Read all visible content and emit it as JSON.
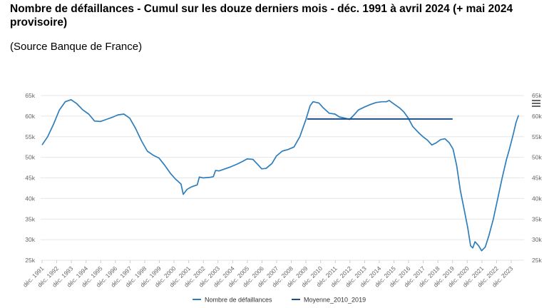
{
  "header": {
    "title": "Nombre de défaillances - Cumul sur les douze derniers mois - déc. 1991 à avril 2024 (+ mai 2024 provisoire)",
    "source": "(Source Banque de France)"
  },
  "icons": {
    "menu": "hamburger-menu-icon"
  },
  "chart_data": {
    "type": "line",
    "title": "",
    "xlabel": "",
    "ylabel": "",
    "ylim": [
      25000,
      65000
    ],
    "y_ticks": [
      65000,
      60000,
      55000,
      50000,
      45000,
      40000,
      35000,
      30000,
      25000
    ],
    "y_tick_labels": [
      "65k",
      "60k",
      "55k",
      "50k",
      "45k",
      "40k",
      "35k",
      "30k",
      "25k"
    ],
    "dual_y_axis": true,
    "grid": true,
    "legend_position": "bottom-center",
    "x_categories": [
      "déc. 1991",
      "déc. 1992",
      "déc. 1993",
      "déc. 1994",
      "déc. 1995",
      "déc. 1996",
      "déc. 1997",
      "déc. 1998",
      "déc. 1999",
      "déc. 2000",
      "déc. 2001",
      "déc. 2002",
      "déc. 2003",
      "déc. 2004",
      "déc. 2005",
      "déc. 2006",
      "déc. 2007",
      "déc. 2008",
      "déc. 2009",
      "déc. 2010",
      "déc. 2011",
      "déc. 2012",
      "déc. 2013",
      "déc. 2014",
      "déc. 2015",
      "déc. 2016",
      "déc. 2017",
      "déc. 2018",
      "déc. 2019",
      "déc. 2020",
      "déc. 2021",
      "déc. 2022",
      "déc. 2023"
    ],
    "series": [
      {
        "name": "Nombre de défaillances",
        "color": "#2f7ebc",
        "points": [
          [
            1991.92,
            53000
          ],
          [
            1992.3,
            55000
          ],
          [
            1992.7,
            58000
          ],
          [
            1993.1,
            61500
          ],
          [
            1993.5,
            63500
          ],
          [
            1993.9,
            64000
          ],
          [
            1994.3,
            63000
          ],
          [
            1994.7,
            61500
          ],
          [
            1995.1,
            60500
          ],
          [
            1995.5,
            58800
          ],
          [
            1995.9,
            58700
          ],
          [
            1996.3,
            59200
          ],
          [
            1996.7,
            59700
          ],
          [
            1997.1,
            60300
          ],
          [
            1997.5,
            60500
          ],
          [
            1997.9,
            59500
          ],
          [
            1998.3,
            57000
          ],
          [
            1998.7,
            54000
          ],
          [
            1999.1,
            51500
          ],
          [
            1999.5,
            50500
          ],
          [
            1999.9,
            49800
          ],
          [
            2000.3,
            48000
          ],
          [
            2000.7,
            46000
          ],
          [
            2001.0,
            44800
          ],
          [
            2001.4,
            43500
          ],
          [
            2001.55,
            41000
          ],
          [
            2001.8,
            42200
          ],
          [
            2002.1,
            42800
          ],
          [
            2002.5,
            43300
          ],
          [
            2002.65,
            45200
          ],
          [
            2002.9,
            45000
          ],
          [
            2003.3,
            45100
          ],
          [
            2003.6,
            45300
          ],
          [
            2003.75,
            46800
          ],
          [
            2004.0,
            46700
          ],
          [
            2004.4,
            47200
          ],
          [
            2004.8,
            47700
          ],
          [
            2005.2,
            48300
          ],
          [
            2005.6,
            49000
          ],
          [
            2005.9,
            49600
          ],
          [
            2006.3,
            49500
          ],
          [
            2006.7,
            48000
          ],
          [
            2006.9,
            47200
          ],
          [
            2007.2,
            47300
          ],
          [
            2007.6,
            48500
          ],
          [
            2007.9,
            50300
          ],
          [
            2008.3,
            51500
          ],
          [
            2008.7,
            51900
          ],
          [
            2009.1,
            52500
          ],
          [
            2009.5,
            55000
          ],
          [
            2009.9,
            59000
          ],
          [
            2010.2,
            62500
          ],
          [
            2010.4,
            63500
          ],
          [
            2010.8,
            63200
          ],
          [
            2011.1,
            62000
          ],
          [
            2011.5,
            60700
          ],
          [
            2011.9,
            60500
          ],
          [
            2012.2,
            59800
          ],
          [
            2012.6,
            59500
          ],
          [
            2012.9,
            59200
          ],
          [
            2013.2,
            60300
          ],
          [
            2013.5,
            61500
          ],
          [
            2013.9,
            62200
          ],
          [
            2014.3,
            62800
          ],
          [
            2014.7,
            63300
          ],
          [
            2015.1,
            63500
          ],
          [
            2015.4,
            63500
          ],
          [
            2015.6,
            63800
          ],
          [
            2015.9,
            63000
          ],
          [
            2016.3,
            62000
          ],
          [
            2016.6,
            61000
          ],
          [
            2016.9,
            59500
          ],
          [
            2017.2,
            57500
          ],
          [
            2017.6,
            56000
          ],
          [
            2017.9,
            55000
          ],
          [
            2018.2,
            54200
          ],
          [
            2018.5,
            53000
          ],
          [
            2018.8,
            53500
          ],
          [
            2019.1,
            54300
          ],
          [
            2019.4,
            54500
          ],
          [
            2019.7,
            53500
          ],
          [
            2019.95,
            52000
          ],
          [
            2020.2,
            48000
          ],
          [
            2020.45,
            42000
          ],
          [
            2020.7,
            37500
          ],
          [
            2020.95,
            33000
          ],
          [
            2021.15,
            28500
          ],
          [
            2021.3,
            28000
          ],
          [
            2021.45,
            29500
          ],
          [
            2021.7,
            28500
          ],
          [
            2021.9,
            27300
          ],
          [
            2022.15,
            28200
          ],
          [
            2022.4,
            31000
          ],
          [
            2022.7,
            35000
          ],
          [
            2023.0,
            40000
          ],
          [
            2023.3,
            45000
          ],
          [
            2023.6,
            49500
          ],
          [
            2023.8,
            52000
          ],
          [
            2024.05,
            55500
          ],
          [
            2024.25,
            58500
          ],
          [
            2024.42,
            60200
          ]
        ]
      },
      {
        "name": "Moyenne_2010_2019",
        "color": "#1b4f8a",
        "points": [
          [
            2010.0,
            59300
          ],
          [
            2019.92,
            59300
          ]
        ]
      }
    ]
  }
}
